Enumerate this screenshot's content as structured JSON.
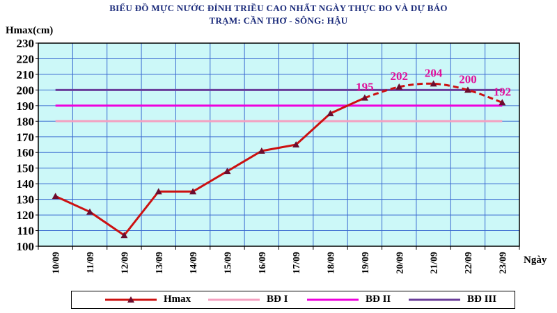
{
  "title_line1": "BIỂU ĐỒ MỰC NƯỚC ĐỈNH TRIỀU CAO NHẤT NGÀY THỰC ĐO VÀ DỰ BÁO",
  "title_line2": "TRẠM: CẦN THƠ - SÔNG: HẬU",
  "chart_data": {
    "type": "line",
    "title": "BIỂU ĐỒ MỰC NƯỚC ĐỈNH TRIỀU CAO NHẤT NGÀY THỰC ĐO VÀ DỰ BÁO",
    "subtitle": "TRẠM: CẦN THƠ - SÔNG: HẬU",
    "ylabel": "Hmax(cm)",
    "xlabel": "Ngày",
    "ylim": [
      100,
      230
    ],
    "yticks": [
      100,
      110,
      120,
      130,
      140,
      150,
      160,
      170,
      180,
      190,
      200,
      210,
      220,
      230
    ],
    "categories": [
      "10/09",
      "11/09",
      "12/09",
      "13/09",
      "14/09",
      "15/09",
      "16/09",
      "17/09",
      "18/09",
      "19/09",
      "20/09",
      "21/09",
      "22/09",
      "23/09"
    ],
    "grid": true,
    "legend_position": "bottom",
    "series": [
      {
        "name": "Hmax",
        "color": "#cc1111",
        "marker": "triangle",
        "values": [
          132,
          122,
          107,
          135,
          135,
          148,
          161,
          165,
          185,
          195,
          202,
          204,
          200,
          192
        ],
        "observed_through_index": 9
      },
      {
        "name": "BĐ I",
        "color": "#f4a0c0",
        "constant": 180
      },
      {
        "name": "BĐ II",
        "color": "#ee00dd",
        "constant": 190
      },
      {
        "name": "BĐ III",
        "color": "#6a3d9a",
        "constant": 200
      }
    ],
    "data_labels": [
      {
        "category": "19/09",
        "text": "195"
      },
      {
        "category": "20/09",
        "text": "202"
      },
      {
        "category": "21/09",
        "text": "204"
      },
      {
        "category": "22/09",
        "text": "200"
      },
      {
        "category": "23/09",
        "text": "192"
      }
    ],
    "data_label_color": "#e0109a",
    "plot_background": "#ccf8f8",
    "grid_color": "#3a6ad0"
  }
}
